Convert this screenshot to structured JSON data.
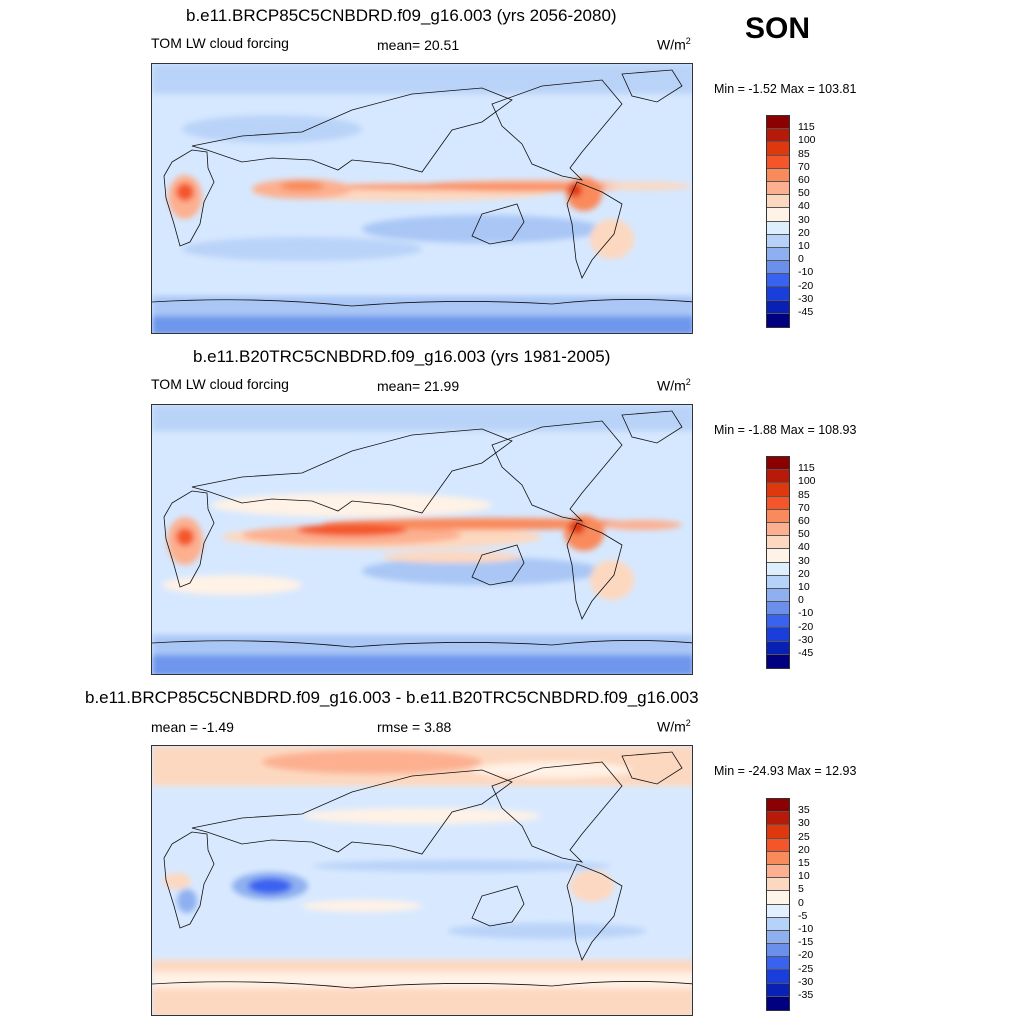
{
  "season": "SON",
  "units_base": "W/m",
  "units_exp": "2",
  "panels": [
    {
      "title": "b.e11.BRCP85C5CNBDRD.f09_g16.003 (yrs 2056-2080)",
      "left_label": "TOM LW cloud forcing",
      "center_label": "mean=  20.51",
      "minmax": "Min =  -1.52 Max = 103.81",
      "cb_labels": [
        "115",
        "100",
        "85",
        "70",
        "60",
        "50",
        "40",
        "30",
        "20",
        "10",
        "0",
        "-10",
        "-20",
        "-30",
        "-45"
      ],
      "cb_colors": [
        "#8b0000",
        "#b81a0a",
        "#e0380e",
        "#f4562a",
        "#f98a5c",
        "#fcb090",
        "#fdd8c0",
        "#fff2e6",
        "#ddeeff",
        "#b6d2f8",
        "#8eb0f0",
        "#6a90ec",
        "#3a62f0",
        "#1a3edc",
        "#0820b4",
        "#000080"
      ]
    },
    {
      "title": "b.e11.B20TRC5CNBDRD.f09_g16.003 (yrs 1981-2005)",
      "left_label": "TOM LW cloud forcing",
      "center_label": "mean=  21.99",
      "minmax": "Min =  -1.88 Max = 108.93",
      "cb_labels": [
        "115",
        "100",
        "85",
        "70",
        "60",
        "50",
        "40",
        "30",
        "20",
        "10",
        "0",
        "-10",
        "-20",
        "-30",
        "-45"
      ],
      "cb_colors": [
        "#8b0000",
        "#b81a0a",
        "#e0380e",
        "#f4562a",
        "#f98a5c",
        "#fcb090",
        "#fdd8c0",
        "#fff2e6",
        "#ddeeff",
        "#b6d2f8",
        "#8eb0f0",
        "#6a90ec",
        "#3a62f0",
        "#1a3edc",
        "#0820b4",
        "#000080"
      ]
    },
    {
      "title": "b.e11.BRCP85C5CNBDRD.f09_g16.003 - b.e11.B20TRC5CNBDRD.f09_g16.003",
      "left_label": "mean =  -1.49",
      "center_label": "rmse =   3.88",
      "minmax": "Min = -24.93 Max =  12.93",
      "cb_labels": [
        "35",
        "30",
        "25",
        "20",
        "15",
        "10",
        "5",
        "0",
        "-5",
        "-10",
        "-15",
        "-20",
        "-25",
        "-30",
        "-35"
      ],
      "cb_colors": [
        "#8b0000",
        "#b81a0a",
        "#e0380e",
        "#f4562a",
        "#f98a5c",
        "#fcb090",
        "#fdd8c0",
        "#fff4ea",
        "#e2efff",
        "#b6d2f8",
        "#8eb0f0",
        "#6a90ec",
        "#3a62f0",
        "#1a3edc",
        "#0820b4",
        "#000080"
      ]
    }
  ]
}
